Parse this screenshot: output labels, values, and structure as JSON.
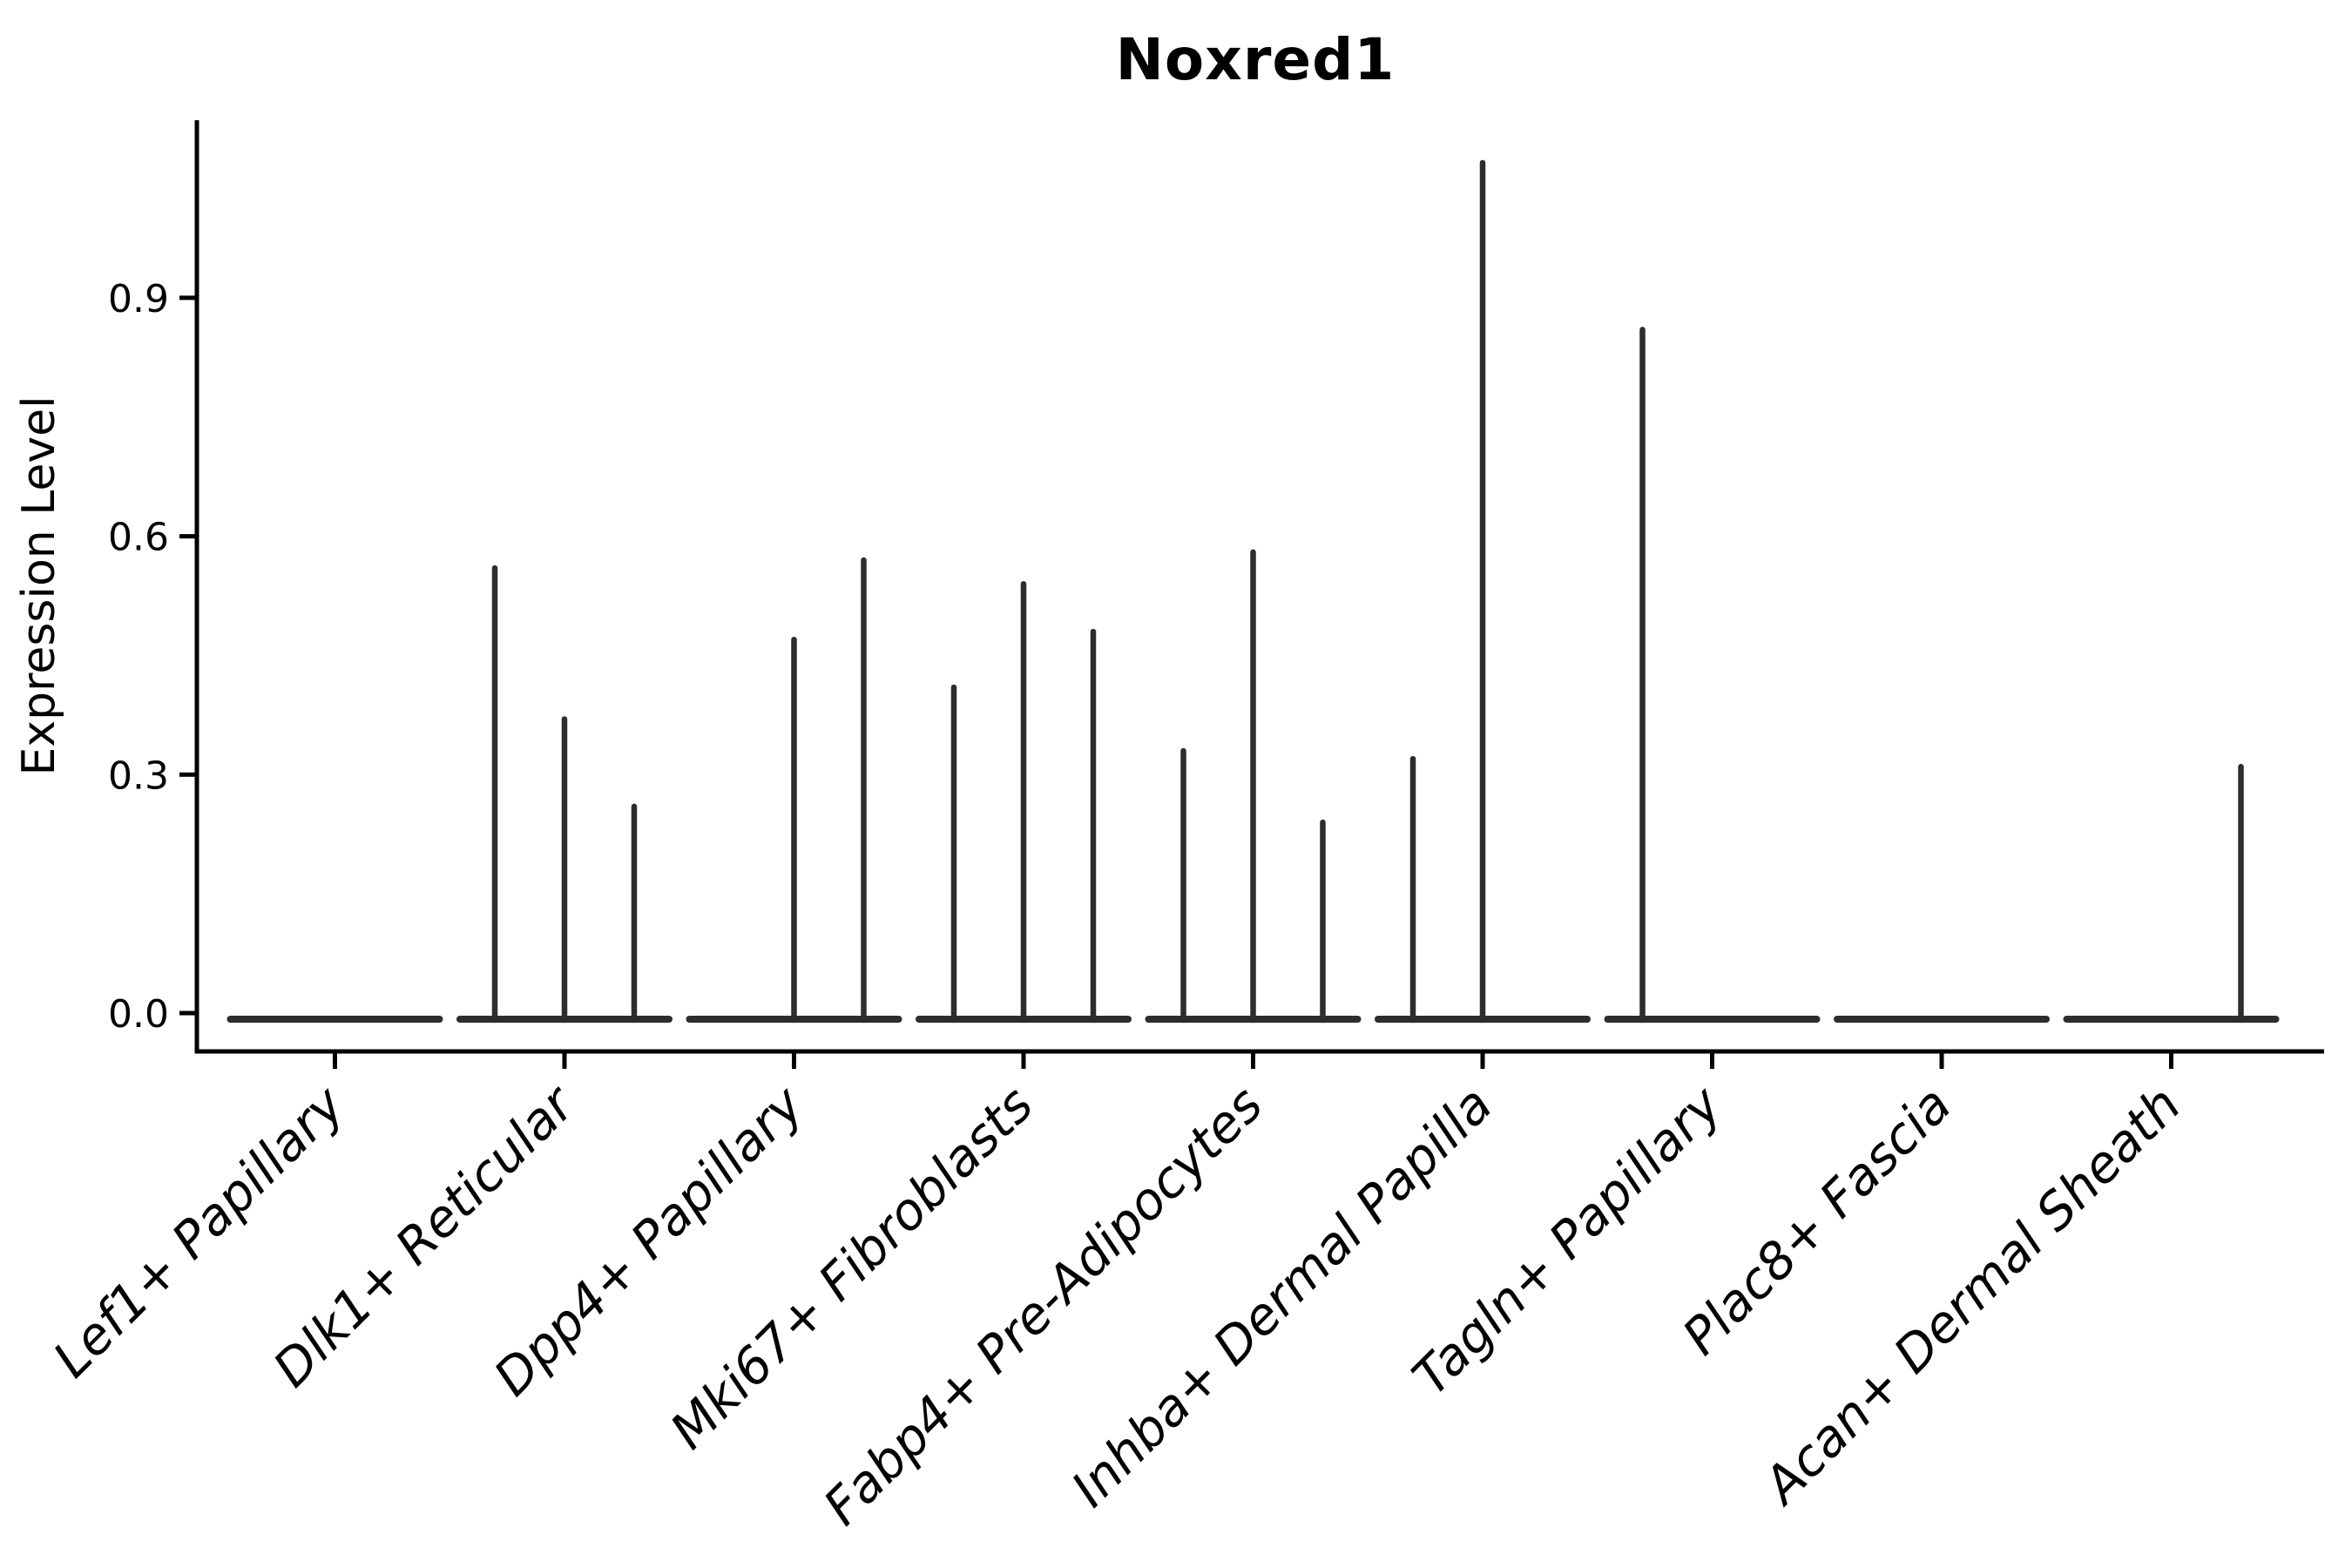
{
  "figure": {
    "background": "#ffffff"
  },
  "chart_data": {
    "type": "violin",
    "title": "Noxred1",
    "ylabel": "Expression Level",
    "xlabel": "",
    "ytick_labels": [
      "0.0",
      "0.3",
      "0.6",
      "0.9"
    ],
    "ytick_values": [
      0.0,
      0.3,
      0.6,
      0.9
    ],
    "ylim": [
      -0.05,
      1.12
    ],
    "grid": false,
    "legend_position": "none",
    "categories": [
      "Lef1+ Papillary",
      "Dlk1+ Reticular",
      "Dpp4+ Papillary",
      "Mki67+ Fibroblasts",
      "Fabp4+ Pre-Adipocytes",
      "Inhba+ Dermal Papilla",
      "Tagln+ Papillary",
      "Plac8+ Fascia",
      "Acan+ Dermal Sheath"
    ],
    "sub_violins_per_category": 3,
    "violins": [
      {
        "category": "Lef1+ Papillary",
        "max_expression": [
          0,
          0,
          0
        ]
      },
      {
        "category": "Dlk1+ Reticular",
        "max_expression": [
          0.56,
          0.37,
          0.26
        ]
      },
      {
        "category": "Dpp4+ Papillary",
        "max_expression": [
          0,
          0.47,
          0.57
        ]
      },
      {
        "category": "Mki67+ Fibroblasts",
        "max_expression": [
          0.41,
          0.54,
          0.48
        ]
      },
      {
        "category": "Fabp4+ Pre-Adipocytes",
        "max_expression": [
          0.33,
          0.58,
          0.24
        ]
      },
      {
        "category": "Inhba+ Dermal Papilla",
        "max_expression": [
          0.32,
          1.07,
          0
        ]
      },
      {
        "category": "Tagln+ Papillary",
        "max_expression": [
          0.86,
          0,
          0
        ]
      },
      {
        "category": "Plac8+ Fascia",
        "max_expression": [
          0,
          0,
          0
        ]
      },
      {
        "category": "Acan+ Dermal Sheath",
        "max_expression": [
          0,
          0,
          0.31
        ]
      }
    ],
    "colors": {
      "violin": "#2d2d2d",
      "axis": "#000000",
      "text": "#000000",
      "background": "#ffffff"
    }
  }
}
